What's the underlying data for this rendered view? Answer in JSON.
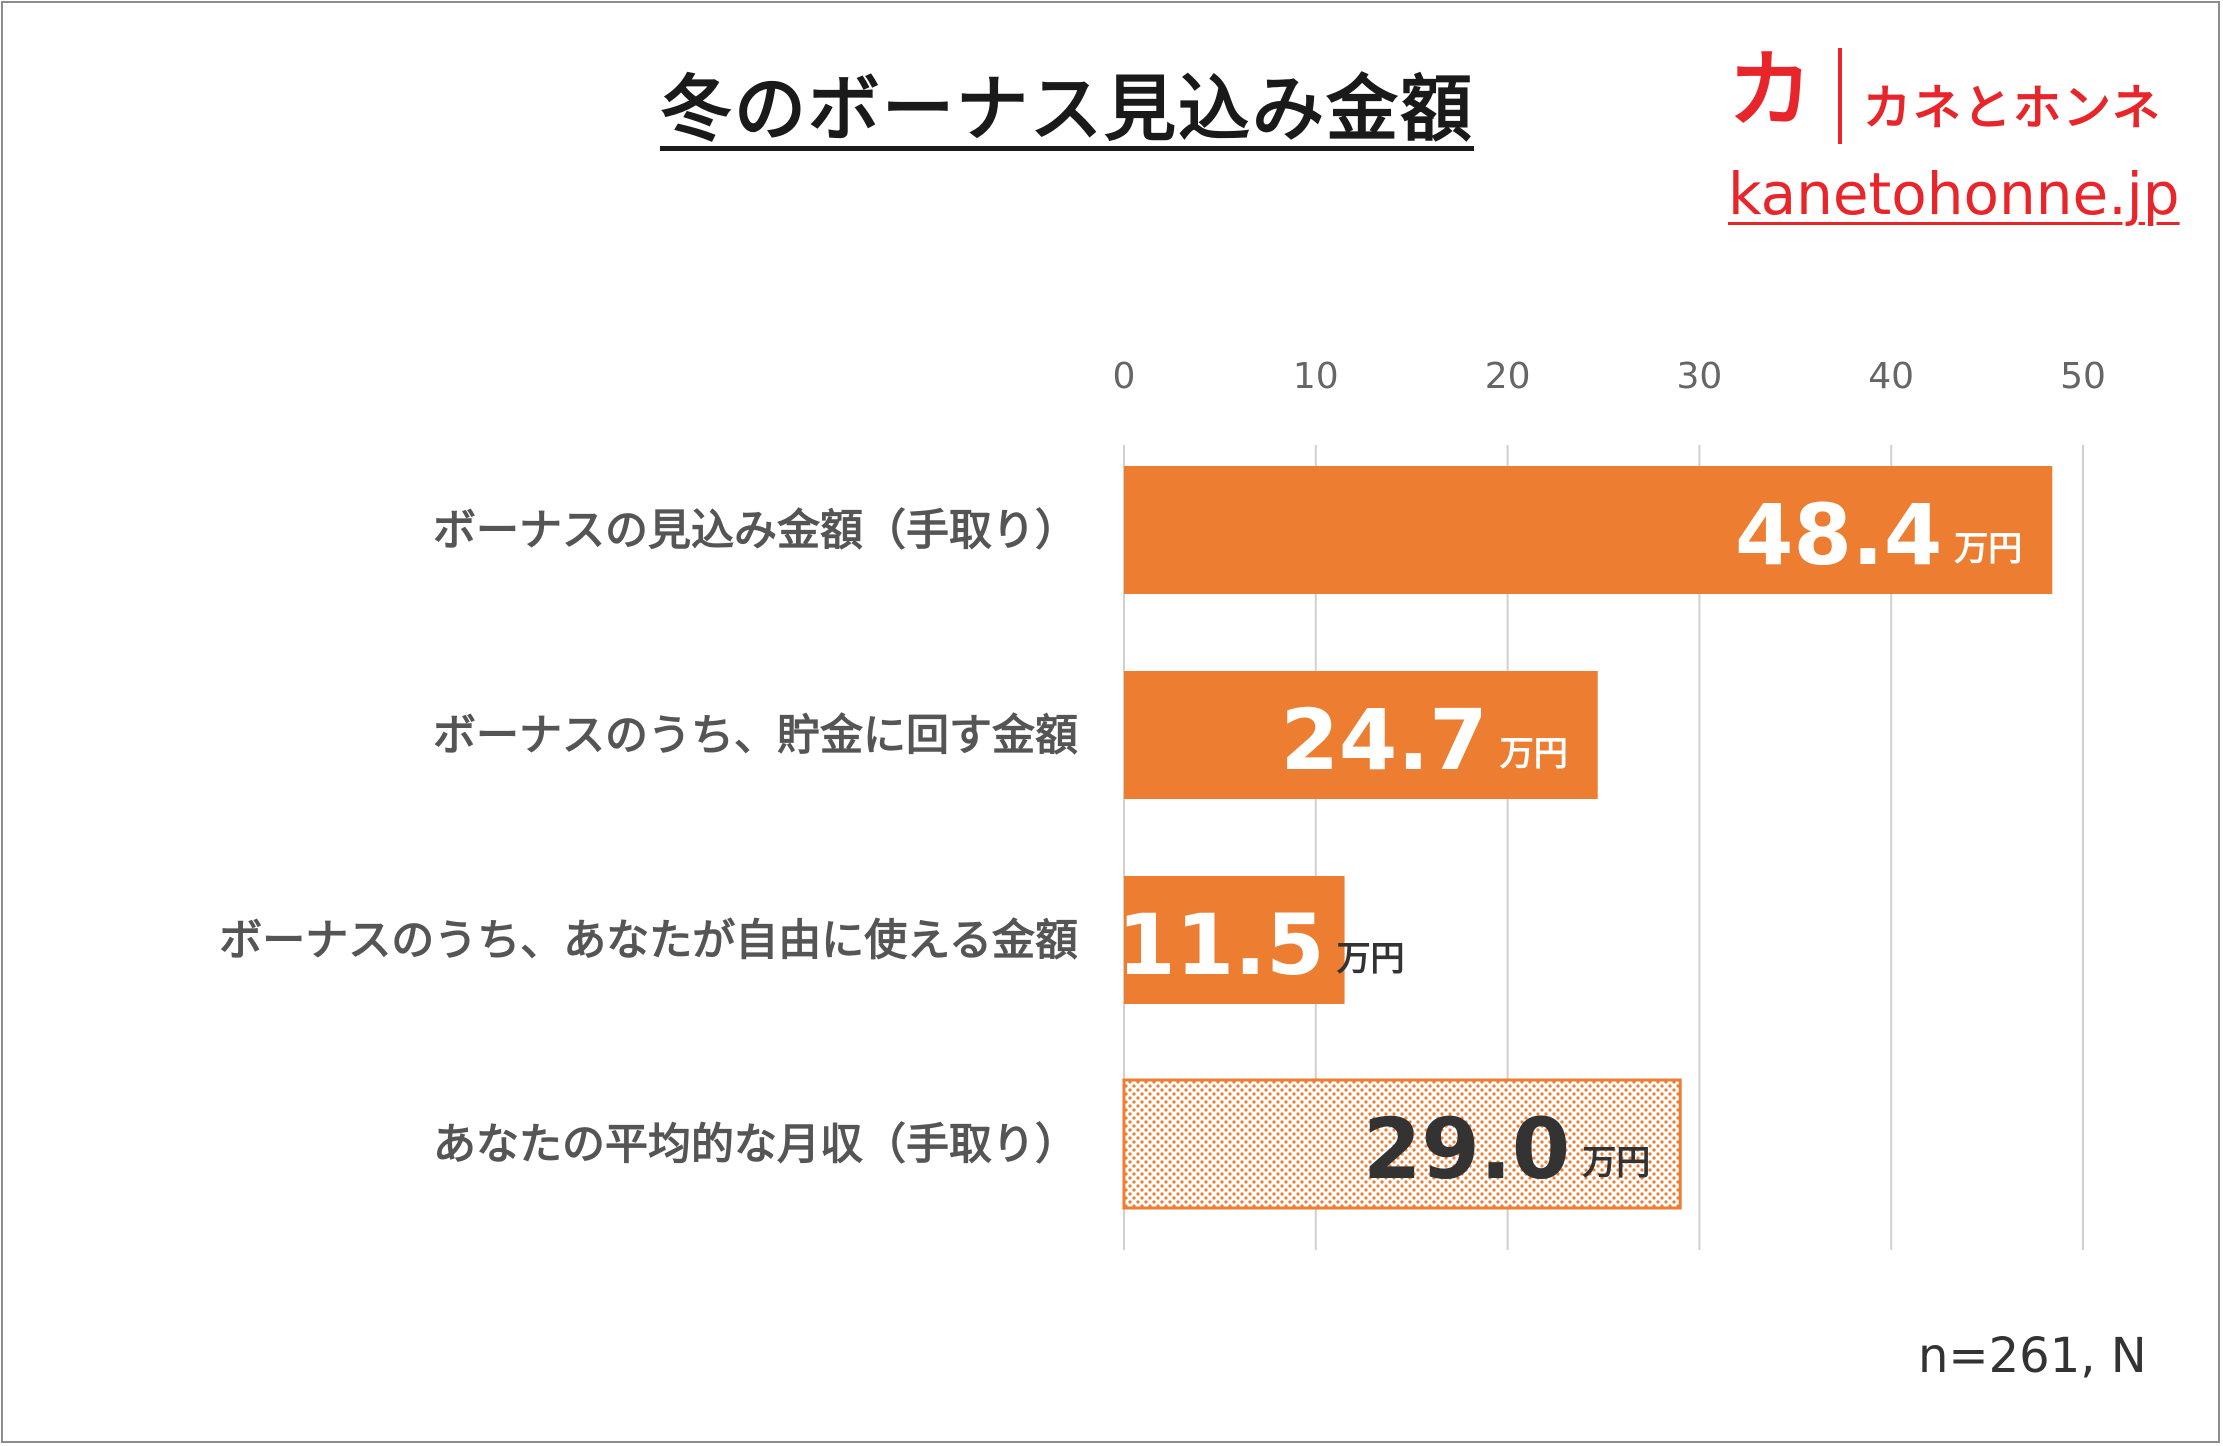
{
  "colors": {
    "bar": "#ed7d31",
    "title": "#1a1a1a",
    "brand": "#e8252a",
    "label": "#555555",
    "grid": "#d0d0d0"
  },
  "header": {
    "title": "冬のボーナス見込み金額"
  },
  "brand": {
    "mark": "カ",
    "name": "カネとホンネ",
    "url": "kanetohonne.jp"
  },
  "note": "n=261, N",
  "chart_data": {
    "type": "bar",
    "orientation": "horizontal",
    "title": "冬のボーナス見込み金額",
    "categories": [
      "ボーナスの見込み金額（手取り）",
      "ボーナスのうち、貯金に回す金額",
      "ボーナスのうち、あなたが自由に使える金額",
      "あなたの平均的な月収（手取り）"
    ],
    "values": [
      48.4,
      24.7,
      11.5,
      29.0
    ],
    "value_labels": [
      "48.4",
      "24.7",
      "11.5",
      "29.0"
    ],
    "unit": "万円",
    "bar_styles": [
      "solid",
      "solid",
      "solid",
      "dotted"
    ],
    "xlim": [
      0,
      50
    ],
    "ticks": [
      "0",
      "10",
      "20",
      "30",
      "40",
      "50"
    ],
    "grid": true,
    "xaxis_position": "top"
  }
}
